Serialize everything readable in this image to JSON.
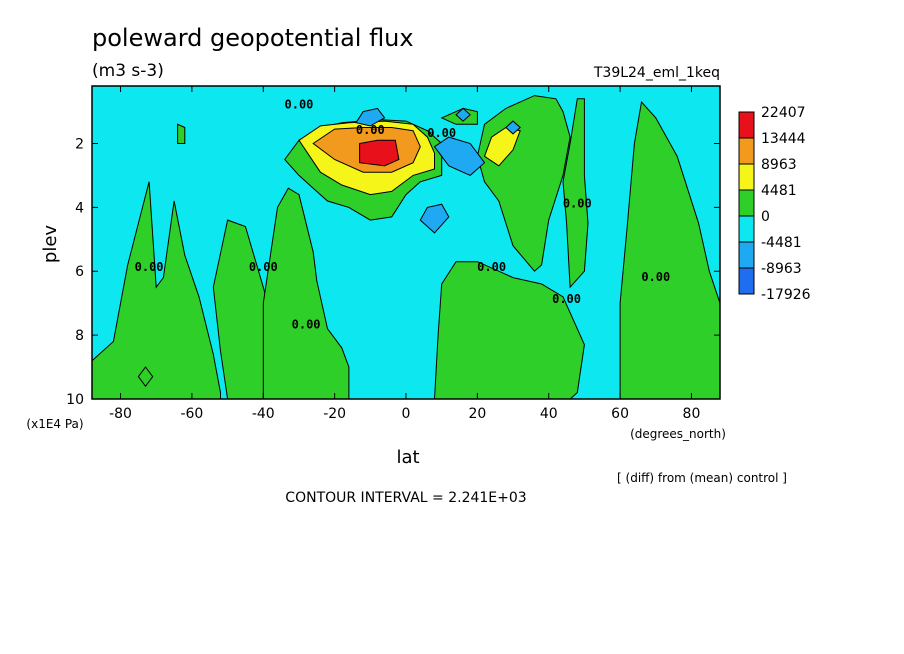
{
  "chart_data": {
    "type": "heatmap",
    "title": "poleward geopotential flux",
    "units": "(m3 s-3)",
    "experiment": "T39L24_eml_1keq",
    "xlabel": "lat",
    "xunits": "(degrees_north)",
    "ylabel": "plev",
    "yunits": "(x1E4 Pa)",
    "xlim": [
      -88,
      88
    ],
    "ylim": [
      10,
      0.2
    ],
    "x_ticks": [
      "-80",
      "-60",
      "-40",
      "-20",
      "0",
      "20",
      "40",
      "60",
      "80"
    ],
    "y_ticks": [
      "2",
      "4",
      "6",
      "8",
      "10"
    ],
    "contour_label": "0.00",
    "colorbar": {
      "labels": [
        "22407",
        "13444",
        "8963",
        "4481",
        "0",
        "-4481",
        "-8963",
        "-17926"
      ],
      "colors": [
        "#e8101a",
        "#f29a1e",
        "#f5f51a",
        "#2fcf2a",
        "#0de8f0",
        "#1fa9f2",
        "#1f6ef2"
      ]
    },
    "contour_interval": "CONTOUR INTERVAL = 2.241E+03",
    "footnote": "[ (diff) from (mean) control ]",
    "regions": [
      {
        "level": "pos1",
        "points": [
          [
            -88,
            10
          ],
          [
            -88,
            8.8
          ],
          [
            -82,
            8.2
          ],
          [
            -78,
            5.8
          ],
          [
            -75,
            4.5
          ],
          [
            -72,
            3.2
          ],
          [
            -70,
            6.5
          ],
          [
            -68,
            6.2
          ],
          [
            -65,
            3.8
          ],
          [
            -62,
            5.5
          ],
          [
            -58,
            6.8
          ],
          [
            -54,
            8.6
          ],
          [
            -52,
            9.8
          ],
          [
            -52,
            10
          ]
        ]
      },
      {
        "level": "pos1",
        "points": [
          [
            -50,
            10
          ],
          [
            -52,
            8.5
          ],
          [
            -54,
            6.5
          ],
          [
            -50,
            4.4
          ],
          [
            -45,
            4.6
          ],
          [
            -40,
            6.5
          ],
          [
            -36,
            8.2
          ],
          [
            -38,
            9.5
          ],
          [
            -40,
            10
          ]
        ]
      },
      {
        "level": "pos1",
        "points": [
          [
            -40,
            10
          ],
          [
            -40,
            7.0
          ],
          [
            -38,
            5.5
          ],
          [
            -36,
            4.0
          ],
          [
            -33,
            3.4
          ],
          [
            -30,
            3.6
          ],
          [
            -26,
            5.4
          ],
          [
            -25,
            6.3
          ],
          [
            -22,
            7.8
          ],
          [
            -18,
            8.4
          ],
          [
            -16,
            9.0
          ],
          [
            -16,
            10
          ]
        ]
      },
      {
        "level": "pos1",
        "points": [
          [
            -64,
            2.0
          ],
          [
            -64,
            1.4
          ],
          [
            -62,
            1.5
          ],
          [
            -62,
            2.0
          ]
        ]
      },
      {
        "level": "pos1",
        "points": [
          [
            -34,
            2.5
          ],
          [
            -30,
            1.9
          ],
          [
            -24,
            1.5
          ],
          [
            -18,
            1.35
          ],
          [
            -8,
            1.25
          ],
          [
            0,
            1.3
          ],
          [
            6,
            1.6
          ],
          [
            10,
            2.0
          ],
          [
            10,
            3.0
          ],
          [
            4,
            3.2
          ],
          [
            0,
            3.6
          ],
          [
            -4,
            4.3
          ],
          [
            -10,
            4.4
          ],
          [
            -16,
            4.0
          ],
          [
            -22,
            3.8
          ],
          [
            -26,
            3.4
          ],
          [
            -30,
            3.0
          ]
        ]
      },
      {
        "level": "pos1",
        "points": [
          [
            8,
            10
          ],
          [
            9,
            8.0
          ],
          [
            10,
            6.4
          ],
          [
            14,
            5.7
          ],
          [
            20,
            5.7
          ],
          [
            26,
            6.0
          ],
          [
            30,
            6.2
          ],
          [
            38,
            6.4
          ],
          [
            44,
            6.8
          ],
          [
            50,
            8.3
          ],
          [
            48,
            9.8
          ],
          [
            46,
            10
          ]
        ]
      },
      {
        "level": "pos1",
        "points": [
          [
            20,
            2.4
          ],
          [
            22,
            1.4
          ],
          [
            28,
            0.9
          ],
          [
            36,
            0.5
          ],
          [
            42,
            0.6
          ],
          [
            44,
            1.0
          ],
          [
            46,
            1.8
          ],
          [
            44,
            3.0
          ],
          [
            40,
            4.4
          ],
          [
            38,
            5.8
          ],
          [
            36,
            6.0
          ],
          [
            30,
            5.2
          ],
          [
            26,
            3.8
          ],
          [
            22,
            3.2
          ]
        ]
      },
      {
        "level": "pos1",
        "points": [
          [
            46,
            6.5
          ],
          [
            45,
            4.5
          ],
          [
            44,
            3.2
          ],
          [
            46,
            2.0
          ],
          [
            48,
            0.6
          ],
          [
            50,
            0.6
          ],
          [
            50,
            3.0
          ],
          [
            51,
            4.5
          ],
          [
            50,
            6.0
          ]
        ]
      },
      {
        "level": "pos1",
        "points": [
          [
            60,
            10
          ],
          [
            60,
            7.0
          ],
          [
            62,
            4.6
          ],
          [
            64,
            2.0
          ],
          [
            66,
            0.7
          ],
          [
            70,
            1.2
          ],
          [
            76,
            2.4
          ],
          [
            82,
            4.5
          ],
          [
            85,
            6.0
          ],
          [
            88,
            7.0
          ],
          [
            88,
            10
          ]
        ]
      },
      {
        "level": "pos1",
        "points": [
          [
            10,
            1.2
          ],
          [
            16,
            0.9
          ],
          [
            20,
            1.0
          ],
          [
            20,
            1.4
          ],
          [
            14,
            1.4
          ]
        ]
      },
      {
        "level": "pos2",
        "points": [
          [
            -30,
            1.9
          ],
          [
            -24,
            1.45
          ],
          [
            -16,
            1.35
          ],
          [
            -6,
            1.3
          ],
          [
            2,
            1.4
          ],
          [
            6,
            1.8
          ],
          [
            8,
            2.3
          ],
          [
            8,
            2.8
          ],
          [
            2,
            3.0
          ],
          [
            -4,
            3.5
          ],
          [
            -10,
            3.6
          ],
          [
            -18,
            3.3
          ],
          [
            -24,
            2.9
          ]
        ]
      },
      {
        "level": "pos2",
        "points": [
          [
            22,
            2.4
          ],
          [
            24,
            1.8
          ],
          [
            28,
            1.5
          ],
          [
            32,
            1.6
          ],
          [
            30,
            2.2
          ],
          [
            26,
            2.7
          ]
        ]
      },
      {
        "level": "pos3",
        "points": [
          [
            -26,
            2.0
          ],
          [
            -20,
            1.55
          ],
          [
            -12,
            1.5
          ],
          [
            -4,
            1.5
          ],
          [
            2,
            1.6
          ],
          [
            4,
            2.1
          ],
          [
            2,
            2.6
          ],
          [
            -4,
            2.9
          ],
          [
            -12,
            2.9
          ],
          [
            -20,
            2.5
          ]
        ]
      },
      {
        "level": "pos4",
        "points": [
          [
            -13,
            2.6
          ],
          [
            -13,
            2.0
          ],
          [
            -8,
            1.9
          ],
          [
            -3,
            1.9
          ],
          [
            -2,
            2.5
          ],
          [
            -6,
            2.7
          ]
        ]
      },
      {
        "level": "neg2",
        "points": [
          [
            -14,
            1.35
          ],
          [
            -12,
            1.0
          ],
          [
            -8,
            0.9
          ],
          [
            -6,
            1.2
          ],
          [
            -10,
            1.45
          ]
        ]
      },
      {
        "level": "neg2",
        "points": [
          [
            8,
            2.1
          ],
          [
            12,
            1.8
          ],
          [
            18,
            2.0
          ],
          [
            22,
            2.6
          ],
          [
            18,
            3.0
          ],
          [
            12,
            2.7
          ]
        ]
      },
      {
        "level": "neg2",
        "points": [
          [
            4,
            4.4
          ],
          [
            6,
            4.0
          ],
          [
            10,
            3.9
          ],
          [
            12,
            4.3
          ],
          [
            8,
            4.8
          ]
        ]
      },
      {
        "level": "neg2",
        "points": [
          [
            14,
            1.1
          ],
          [
            16,
            0.9
          ],
          [
            18,
            1.1
          ],
          [
            16,
            1.3
          ]
        ]
      },
      {
        "level": "neg2",
        "points": [
          [
            28,
            1.5
          ],
          [
            30,
            1.3
          ],
          [
            32,
            1.5
          ],
          [
            30,
            1.7
          ]
        ]
      },
      {
        "level": "pos1",
        "points": [
          [
            -75,
            9.3
          ],
          [
            -73,
            9.0
          ],
          [
            -71,
            9.3
          ],
          [
            -73,
            9.6
          ]
        ]
      }
    ],
    "label_spots": [
      [
        -30,
        0.9
      ],
      [
        -10,
        1.7
      ],
      [
        10,
        1.8
      ],
      [
        -72,
        6.0
      ],
      [
        -40,
        6.0
      ],
      [
        -28,
        7.8
      ],
      [
        24,
        6.0
      ],
      [
        48,
        4.0
      ],
      [
        45,
        7.0
      ],
      [
        70,
        6.3
      ]
    ]
  }
}
